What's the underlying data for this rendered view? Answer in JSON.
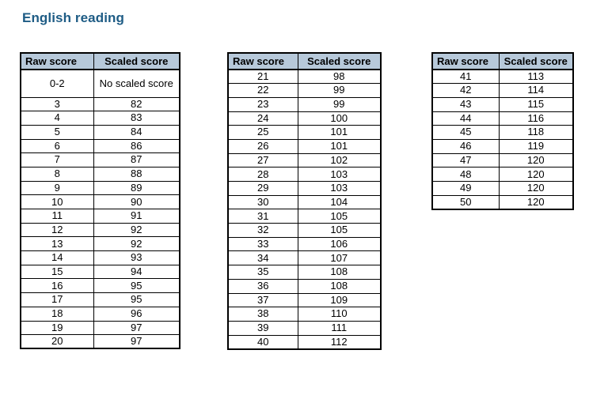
{
  "page": {
    "title": "English reading"
  },
  "colors": {
    "title": "#1e5c85",
    "header_bg": "#b7c9da",
    "border": "#000000",
    "text": "#000000",
    "background": "#ffffff"
  },
  "column_headers": {
    "raw": "Raw score",
    "scaled": "Scaled score"
  },
  "tables": [
    {
      "name": "raw-scores-0-20",
      "rows": [
        [
          "0-2",
          "No scaled score"
        ],
        [
          "3",
          "82"
        ],
        [
          "4",
          "83"
        ],
        [
          "5",
          "84"
        ],
        [
          "6",
          "86"
        ],
        [
          "7",
          "87"
        ],
        [
          "8",
          "88"
        ],
        [
          "9",
          "89"
        ],
        [
          "10",
          "90"
        ],
        [
          "11",
          "91"
        ],
        [
          "12",
          "92"
        ],
        [
          "13",
          "92"
        ],
        [
          "14",
          "93"
        ],
        [
          "15",
          "94"
        ],
        [
          "16",
          "95"
        ],
        [
          "17",
          "95"
        ],
        [
          "18",
          "96"
        ],
        [
          "19",
          "97"
        ],
        [
          "20",
          "97"
        ]
      ]
    },
    {
      "name": "raw-scores-21-40",
      "rows": [
        [
          "21",
          "98"
        ],
        [
          "22",
          "99"
        ],
        [
          "23",
          "99"
        ],
        [
          "24",
          "100"
        ],
        [
          "25",
          "101"
        ],
        [
          "26",
          "101"
        ],
        [
          "27",
          "102"
        ],
        [
          "28",
          "103"
        ],
        [
          "29",
          "103"
        ],
        [
          "30",
          "104"
        ],
        [
          "31",
          "105"
        ],
        [
          "32",
          "105"
        ],
        [
          "33",
          "106"
        ],
        [
          "34",
          "107"
        ],
        [
          "35",
          "108"
        ],
        [
          "36",
          "108"
        ],
        [
          "37",
          "109"
        ],
        [
          "38",
          "110"
        ],
        [
          "39",
          "111"
        ],
        [
          "40",
          "112"
        ]
      ]
    },
    {
      "name": "raw-scores-41-50",
      "rows": [
        [
          "41",
          "113"
        ],
        [
          "42",
          "114"
        ],
        [
          "43",
          "115"
        ],
        [
          "44",
          "116"
        ],
        [
          "45",
          "118"
        ],
        [
          "46",
          "119"
        ],
        [
          "47",
          "120"
        ],
        [
          "48",
          "120"
        ],
        [
          "49",
          "120"
        ],
        [
          "50",
          "120"
        ]
      ]
    }
  ]
}
